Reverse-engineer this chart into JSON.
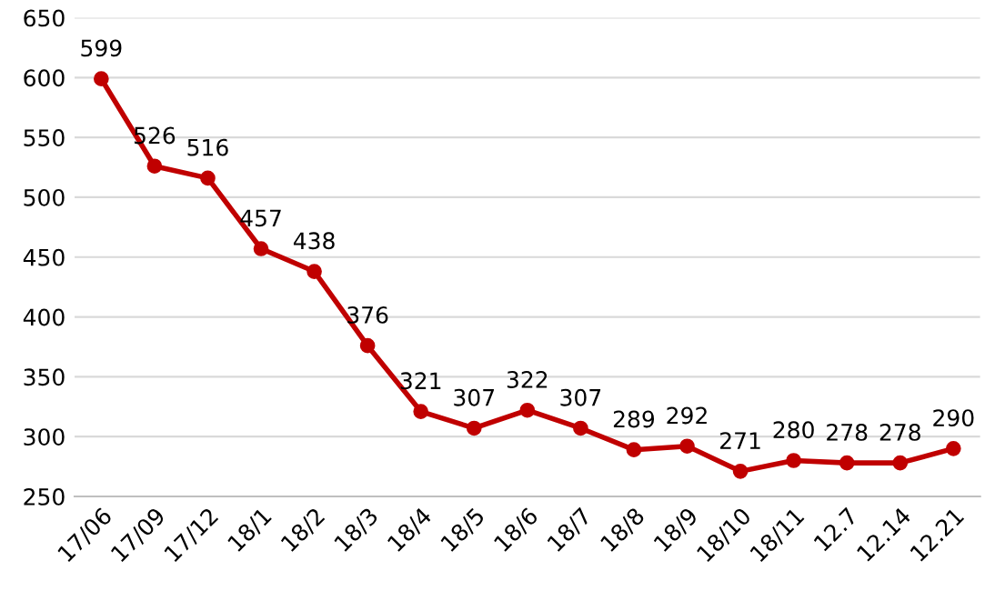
{
  "chart_data": {
    "type": "line",
    "categories": [
      "17/06",
      "17/09",
      "17/12",
      "18/1",
      "18/2",
      "18/3",
      "18/4",
      "18/5",
      "18/6",
      "18/7",
      "18/8",
      "18/9",
      "18/10",
      "18/11",
      "12.7",
      "12.14",
      "12.21"
    ],
    "series": [
      {
        "color": "#c00000",
        "values": [
          599,
          526,
          516,
          457,
          438,
          376,
          321,
          307,
          322,
          307,
          289,
          292,
          271,
          280,
          278,
          278,
          290
        ]
      }
    ],
    "ylim": [
      250,
      650
    ],
    "yticks": [
      250,
      300,
      350,
      400,
      450,
      500,
      550,
      600,
      650
    ],
    "grid": "y",
    "marker": "circle",
    "line_style": "solid",
    "data_labels": true
  }
}
